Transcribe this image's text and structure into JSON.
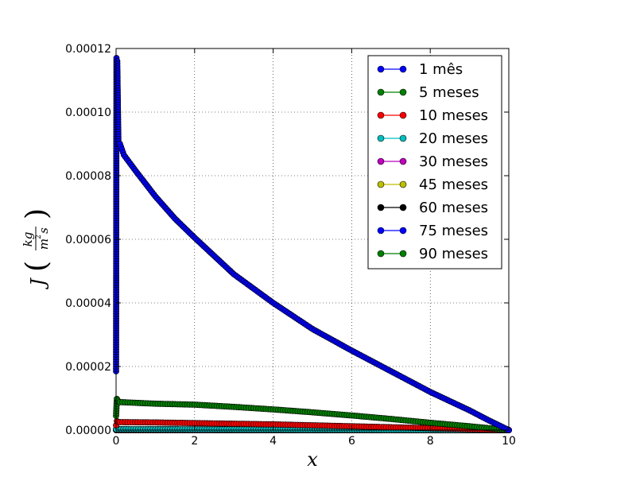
{
  "chart_data": {
    "type": "line",
    "xlabel": "x",
    "ylabel": "J (kg / m² s)",
    "ylabel_parts": {
      "symbol": "J",
      "numerator": "kg",
      "denominator": "m",
      "exponent": "2",
      "trailing": "s"
    },
    "xlim": [
      0,
      10
    ],
    "ylim": [
      0,
      0.00012
    ],
    "x_ticks": [
      0,
      2,
      4,
      6,
      8,
      10
    ],
    "x_tick_labels": [
      "0",
      "2",
      "4",
      "6",
      "8",
      "10"
    ],
    "y_ticks": [
      0,
      2e-05,
      4e-05,
      6e-05,
      8e-05,
      0.0001,
      0.00012
    ],
    "y_tick_labels": [
      "0.00000",
      "0.00002",
      "0.00004",
      "0.00006",
      "0.00008",
      "0.00010",
      "0.00012"
    ],
    "grid": true,
    "legend_position": "top-right",
    "marker": "circle",
    "series": [
      {
        "name": "1 mês",
        "color": "#0000ff",
        "x": [
          0,
          0.01,
          0.03,
          0.06,
          0.1,
          0.2,
          0.5,
          1,
          1.5,
          2,
          3,
          4,
          5,
          6,
          7,
          8,
          9,
          9.5,
          10
        ],
        "y": [
          1.85e-05,
          0.000117,
          0.000116,
          9e-05,
          9e-05,
          8.65e-05,
          8.15e-05,
          7.35e-05,
          6.65e-05,
          6.05e-05,
          4.9e-05,
          4e-05,
          3.18e-05,
          2.5e-05,
          1.85e-05,
          1.2e-05,
          6.2e-06,
          3e-06,
          0
        ]
      },
      {
        "name": "5 meses",
        "color": "#008000",
        "x": [
          0,
          0.02,
          0.05,
          0.1,
          1,
          2,
          3,
          4,
          5,
          6,
          7,
          8,
          9,
          10
        ],
        "y": [
          4.5e-06,
          9.8e-06,
          9.2e-06,
          8.8e-06,
          8.3e-06,
          8e-06,
          7.3e-06,
          6.5e-06,
          5.6e-06,
          4.6e-06,
          3.5e-06,
          2.3e-06,
          1.2e-06,
          0
        ]
      },
      {
        "name": "10 meses",
        "color": "#ff0000",
        "x": [
          0,
          0.02,
          0.05,
          0.1,
          1,
          2,
          3,
          4,
          5,
          6,
          7,
          8,
          9,
          10
        ],
        "y": [
          1.5e-06,
          2.8e-06,
          2.6e-06,
          2.5e-06,
          2.4e-06,
          2.2e-06,
          2e-06,
          1.8e-06,
          1.5e-06,
          1.2e-06,
          9e-07,
          6e-07,
          3e-07,
          0
        ]
      },
      {
        "name": "20 meses",
        "color": "#00bfbf",
        "x": [
          0,
          2,
          4,
          6,
          8,
          10
        ],
        "y": [
          3e-07,
          2.5e-07,
          2e-07,
          1.5e-07,
          8e-08,
          0
        ]
      },
      {
        "name": "30 meses",
        "color": "#bf00bf",
        "x": [
          0,
          2,
          4,
          6,
          8,
          10
        ],
        "y": [
          1.5e-07,
          1.2e-07,
          1e-07,
          7e-08,
          4e-08,
          0
        ]
      },
      {
        "name": "45 meses",
        "color": "#bfbf00",
        "x": [
          0,
          2,
          4,
          6,
          8,
          10
        ],
        "y": [
          8e-08,
          6e-08,
          5e-08,
          4e-08,
          2e-08,
          0
        ]
      },
      {
        "name": "60 meses",
        "color": "#000000",
        "x": [
          0,
          2,
          4,
          6,
          8,
          10
        ],
        "y": [
          4e-08,
          3e-08,
          3e-08,
          2e-08,
          1e-08,
          0
        ]
      },
      {
        "name": "75 meses",
        "color": "#0000ff",
        "x": [
          0,
          2,
          4,
          6,
          8,
          10
        ],
        "y": [
          2e-08,
          2e-08,
          1e-08,
          1e-08,
          1e-08,
          0
        ]
      },
      {
        "name": "90 meses",
        "color": "#008000",
        "x": [
          0,
          2,
          4,
          6,
          8,
          10
        ],
        "y": [
          1e-08,
          1e-08,
          1e-08,
          0,
          0,
          0
        ]
      }
    ]
  }
}
